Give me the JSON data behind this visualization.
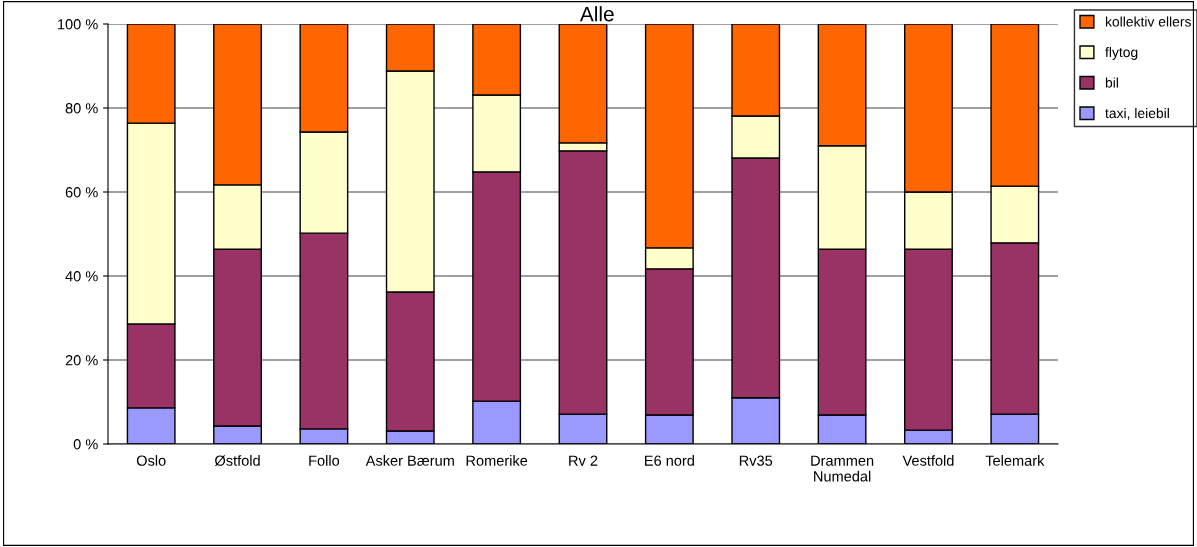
{
  "chart_data": {
    "type": "bar",
    "title": "Alle",
    "stacked": true,
    "categories": [
      "Oslo",
      "Østfold",
      "Follo",
      "Asker Bærum",
      "Romerike",
      "Rv 2",
      "E6 nord",
      "Rv35",
      "Drammen\nNumedal",
      "Vestfold",
      "Telemark"
    ],
    "series": [
      {
        "name": "taxi, leiebil",
        "color": "#9999ff",
        "values": [
          8.6,
          4.3,
          3.6,
          3.1,
          10.2,
          7.1,
          6.9,
          11.0,
          6.9,
          3.3,
          7.1
        ]
      },
      {
        "name": "bil",
        "color": "#993366",
        "values": [
          20.0,
          42.1,
          46.6,
          33.1,
          54.6,
          62.7,
          34.8,
          57.1,
          39.5,
          43.1,
          40.8
        ]
      },
      {
        "name": "flytog",
        "color": "#ffffcc",
        "values": [
          47.8,
          15.3,
          24.1,
          52.6,
          18.3,
          1.9,
          5.0,
          10.0,
          24.6,
          13.6,
          13.5
        ]
      },
      {
        "name": "kollektiv ellers",
        "color": "#ff6600",
        "values": [
          23.6,
          38.3,
          25.7,
          11.2,
          16.9,
          28.3,
          53.3,
          21.9,
          29.0,
          40.0,
          38.6
        ]
      }
    ],
    "ylim": [
      0,
      100
    ],
    "yticks": [
      {
        "value": 0,
        "label": "0 %"
      },
      {
        "value": 20,
        "label": "20 %"
      },
      {
        "value": 40,
        "label": "40 %"
      },
      {
        "value": 60,
        "label": "60 %"
      },
      {
        "value": 80,
        "label": "80 %"
      },
      {
        "value": 100,
        "label": "100 %"
      }
    ],
    "grid": "y",
    "legend": "top right"
  }
}
